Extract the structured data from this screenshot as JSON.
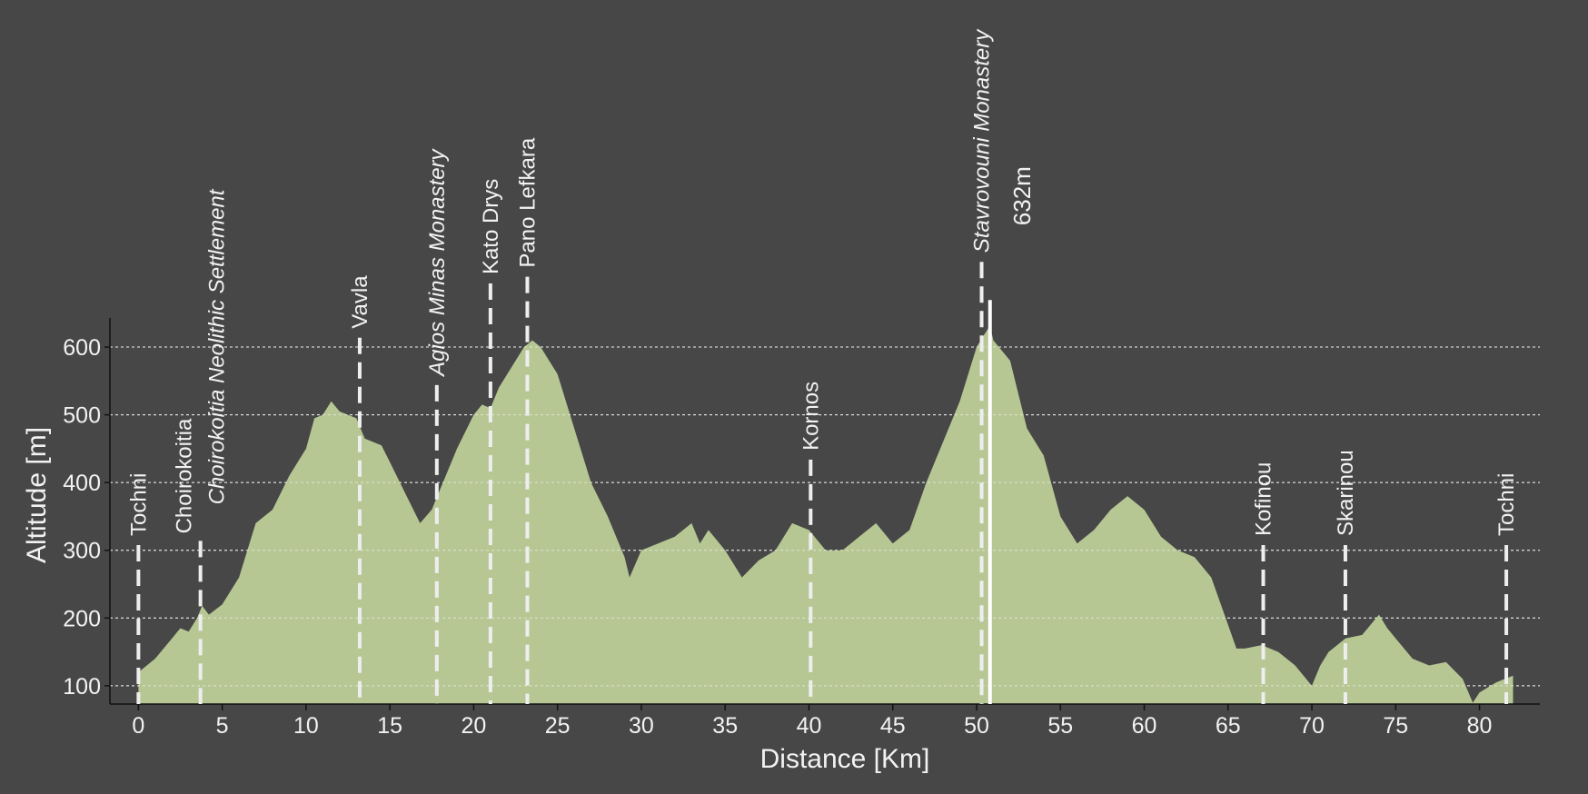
{
  "chart_data": {
    "type": "area",
    "xlabel": "Distance [Km]",
    "ylabel": "Altitude [m]",
    "color": "#b6c794",
    "x": [
      0,
      0.5,
      1,
      2,
      2.5,
      3,
      3.5,
      3.8,
      4.2,
      5,
      6,
      6.5,
      7,
      8,
      9,
      10,
      10.5,
      11,
      11.5,
      12,
      13,
      13.5,
      14.5,
      15,
      16,
      16.8,
      17.5,
      18,
      19,
      20,
      20.5,
      21,
      21.5,
      22,
      23,
      23.5,
      24,
      25,
      26,
      27,
      28,
      29,
      29.3,
      30,
      31,
      32,
      33,
      33.5,
      34,
      35,
      36,
      37,
      38,
      39,
      40,
      41,
      42,
      43,
      44,
      45,
      46,
      47,
      48,
      49,
      50,
      50.5,
      50.8,
      51,
      52,
      53,
      54,
      55,
      56,
      57,
      58,
      59,
      60,
      61,
      62,
      63,
      64,
      65,
      65.5,
      66,
      67,
      68,
      69,
      70,
      70.5,
      71,
      72,
      73,
      74,
      74.5,
      75,
      76,
      77,
      78,
      79,
      79.6,
      80,
      81,
      82
    ],
    "values": [
      120,
      130,
      140,
      170,
      185,
      180,
      200,
      218,
      205,
      220,
      260,
      300,
      340,
      360,
      410,
      450,
      495,
      500,
      520,
      505,
      495,
      465,
      455,
      430,
      380,
      340,
      360,
      390,
      450,
      500,
      515,
      510,
      540,
      560,
      600,
      610,
      600,
      560,
      480,
      400,
      350,
      290,
      260,
      300,
      310,
      320,
      340,
      310,
      330,
      300,
      260,
      285,
      300,
      340,
      330,
      300,
      300,
      320,
      340,
      310,
      330,
      400,
      460,
      520,
      600,
      620,
      632,
      610,
      580,
      480,
      440,
      350,
      310,
      330,
      360,
      380,
      360,
      320,
      300,
      290,
      260,
      190,
      155,
      155,
      160,
      150,
      130,
      100,
      130,
      150,
      170,
      175,
      205,
      185,
      170,
      140,
      130,
      135,
      110,
      75,
      90,
      105,
      115
    ],
    "xlim": [
      -1.7,
      83.6
    ],
    "ylim": [
      73,
      643
    ],
    "xticks": [
      0,
      5,
      10,
      15,
      20,
      25,
      30,
      35,
      40,
      45,
      50,
      55,
      60,
      65,
      70,
      75,
      80
    ],
    "yticks": [
      100,
      200,
      300,
      400,
      500,
      600
    ],
    "grid": true,
    "markers": [
      {
        "label": "Tochni",
        "x": 0,
        "italic": false
      },
      {
        "label": "Choirokoitia",
        "x": 3.7,
        "italic": false
      },
      {
        "label": "Choirokoitia Neolithic Settlement",
        "x": 3.7,
        "italic": true
      },
      {
        "label": "Vavla",
        "x": 13.2,
        "italic": false
      },
      {
        "label": "Agios Minas Monastery",
        "x": 17.8,
        "italic": true
      },
      {
        "label": "Kato Drys",
        "x": 21,
        "italic": false
      },
      {
        "label": "Pano Lefkara",
        "x": 23.2,
        "italic": false
      },
      {
        "label": "Kornos",
        "x": 40.1,
        "italic": false
      },
      {
        "label": "Stavrovouni Monastery",
        "x": 50.3,
        "italic": true
      },
      {
        "label": "Kofinou",
        "x": 67.1,
        "italic": false
      },
      {
        "label": "Skarinou",
        "x": 72,
        "italic": false
      },
      {
        "label": "Tochni",
        "x": 81.6,
        "italic": false
      }
    ],
    "peak": {
      "x": 50.8,
      "value": 632,
      "label": "632m"
    }
  }
}
